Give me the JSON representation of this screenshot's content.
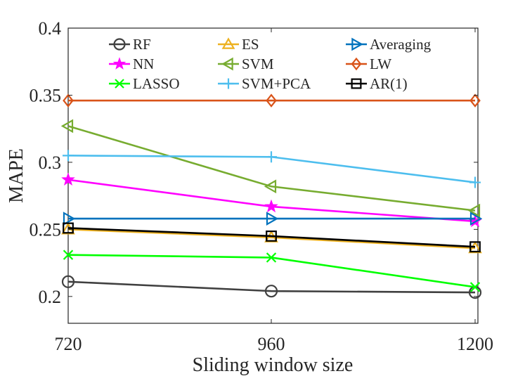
{
  "chart_data": {
    "type": "line",
    "title": "",
    "xlabel": "Sliding window size",
    "ylabel": "MAPE",
    "x": [
      720,
      960,
      1200
    ],
    "x_tick_labels": [
      "720",
      "960",
      "1200"
    ],
    "xlim": [
      720,
      1200
    ],
    "ylim": [
      0.18,
      0.4
    ],
    "y_ticks": [
      0.2,
      0.25,
      0.3,
      0.35,
      0.4
    ],
    "y_tick_labels": [
      "0.2",
      "0.25",
      "0.3",
      "0.35",
      "0.4"
    ],
    "grid": false,
    "legend_position": "top",
    "series": [
      {
        "name": "RF",
        "values": [
          0.211,
          0.204,
          0.203
        ],
        "color": "#404040",
        "marker": "circle"
      },
      {
        "name": "NN",
        "values": [
          0.287,
          0.267,
          0.256
        ],
        "color": "#ff00ff",
        "marker": "star"
      },
      {
        "name": "LASSO",
        "values": [
          0.231,
          0.229,
          0.207
        ],
        "color": "#00ff00",
        "marker": "x"
      },
      {
        "name": "ES",
        "values": [
          0.25,
          0.244,
          0.236
        ],
        "color": "#edb120",
        "marker": "triangle-up"
      },
      {
        "name": "SVM",
        "values": [
          0.327,
          0.282,
          0.264
        ],
        "color": "#77ac30",
        "marker": "triangle-left"
      },
      {
        "name": "SVM+PCA",
        "values": [
          0.305,
          0.304,
          0.285
        ],
        "color": "#4dbeee",
        "marker": "plus"
      },
      {
        "name": "Averaging",
        "values": [
          0.258,
          0.258,
          0.258
        ],
        "color": "#0072bd",
        "marker": "triangle-right"
      },
      {
        "name": "LW",
        "values": [
          0.346,
          0.346,
          0.346
        ],
        "color": "#d95319",
        "marker": "diamond"
      },
      {
        "name": "AR(1)",
        "values": [
          0.251,
          0.245,
          0.237
        ],
        "color": "#000000",
        "marker": "square"
      }
    ]
  }
}
